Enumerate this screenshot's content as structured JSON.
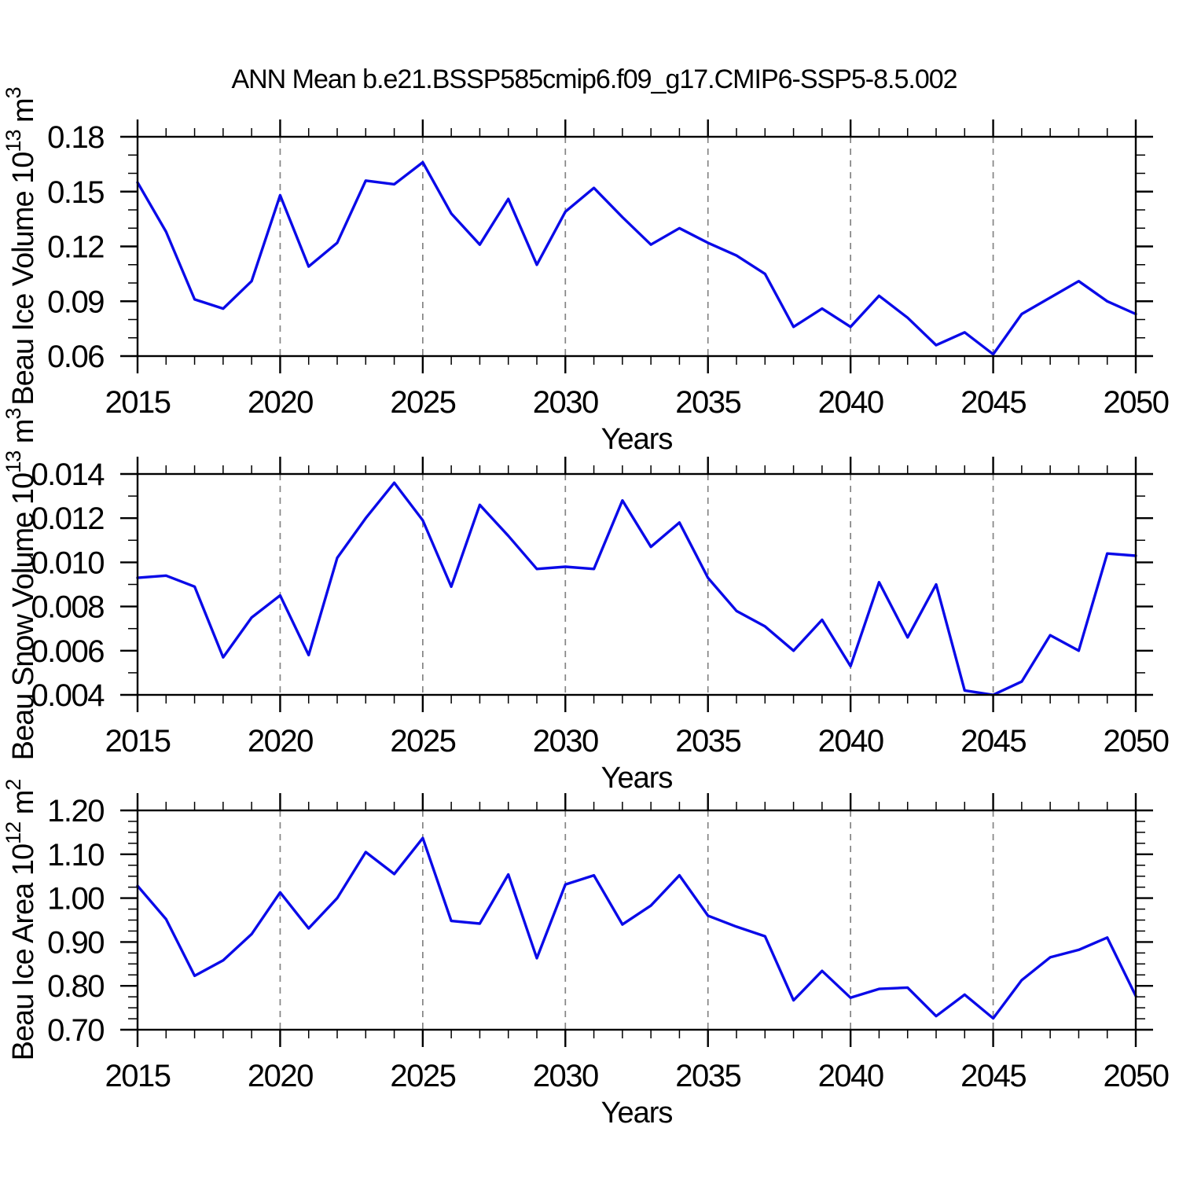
{
  "title": "ANN Mean b.e21.BSSP585cmip6.f09_g17.CMIP6-SSP5-8.5.002",
  "colors": {
    "line": "#0A0AE8",
    "grid": "#848484",
    "frame": "#000000",
    "background": "#ffffff",
    "text": "#000000"
  },
  "chart_data": [
    {
      "id": "ice-volume",
      "type": "line",
      "title": "",
      "ylabel": "Beau Ice Volume 10¹³ m³",
      "ylabel_parts": [
        {
          "t": "Beau Ice Volume 10",
          "sup": false
        },
        {
          "t": "13",
          "sup": true
        },
        {
          "t": " m",
          "sup": false
        },
        {
          "t": "3",
          "sup": true
        }
      ],
      "xlabel": "Years",
      "legend": "none",
      "grid": "vertical-dashed",
      "x": [
        2015,
        2016,
        2017,
        2018,
        2019,
        2020,
        2021,
        2022,
        2023,
        2024,
        2025,
        2026,
        2027,
        2028,
        2029,
        2030,
        2031,
        2032,
        2033,
        2034,
        2035,
        2036,
        2037,
        2038,
        2039,
        2040,
        2041,
        2042,
        2043,
        2044,
        2045,
        2046,
        2047,
        2048,
        2049,
        2050
      ],
      "values": [
        0.155,
        0.128,
        0.091,
        0.086,
        0.101,
        0.148,
        0.109,
        0.122,
        0.156,
        0.154,
        0.166,
        0.138,
        0.121,
        0.146,
        0.11,
        0.139,
        0.152,
        0.136,
        0.121,
        0.13,
        0.122,
        0.115,
        0.105,
        0.076,
        0.086,
        0.076,
        0.093,
        0.081,
        0.066,
        0.073,
        0.061,
        0.083,
        0.092,
        0.101,
        0.09,
        0.083
      ],
      "xlim": [
        2015,
        2050
      ],
      "ylim": [
        0.06,
        0.18
      ],
      "xticks": [
        2015,
        2020,
        2025,
        2030,
        2035,
        2040,
        2045,
        2050
      ],
      "x_minor_step": 1,
      "yticks": [
        0.06,
        0.09,
        0.12,
        0.15,
        0.18
      ],
      "ytick_labels": [
        "0.06",
        "0.09",
        "0.12",
        "0.15",
        "0.18"
      ],
      "y_minor_step": 0.01,
      "grid_x": [
        2020,
        2025,
        2030,
        2035,
        2040,
        2045
      ]
    },
    {
      "id": "snow-volume",
      "type": "line",
      "title": "",
      "ylabel": "Beau Snow Volume 10¹³ m³",
      "ylabel_parts": [
        {
          "t": "Beau Snow Volume 10",
          "sup": false
        },
        {
          "t": "13",
          "sup": true
        },
        {
          "t": " m",
          "sup": false
        },
        {
          "t": "3",
          "sup": true
        }
      ],
      "xlabel": "Years",
      "legend": "none",
      "grid": "vertical-dashed",
      "x": [
        2015,
        2016,
        2017,
        2018,
        2019,
        2020,
        2021,
        2022,
        2023,
        2024,
        2025,
        2026,
        2027,
        2028,
        2029,
        2030,
        2031,
        2032,
        2033,
        2034,
        2035,
        2036,
        2037,
        2038,
        2039,
        2040,
        2041,
        2042,
        2043,
        2044,
        2045,
        2046,
        2047,
        2048,
        2049,
        2050
      ],
      "values": [
        0.0093,
        0.0094,
        0.0089,
        0.0057,
        0.0075,
        0.0085,
        0.0058,
        0.0102,
        0.012,
        0.0136,
        0.0119,
        0.0089,
        0.0126,
        0.0112,
        0.0097,
        0.0098,
        0.0097,
        0.0128,
        0.0107,
        0.0118,
        0.0093,
        0.0078,
        0.0071,
        0.006,
        0.0074,
        0.0053,
        0.0091,
        0.0066,
        0.009,
        0.0042,
        0.004,
        0.0046,
        0.0067,
        0.006,
        0.0104,
        0.0103
      ],
      "xlim": [
        2015,
        2050
      ],
      "ylim": [
        0.004,
        0.014
      ],
      "xticks": [
        2015,
        2020,
        2025,
        2030,
        2035,
        2040,
        2045,
        2050
      ],
      "x_minor_step": 1,
      "yticks": [
        0.004,
        0.006,
        0.008,
        0.01,
        0.012,
        0.014
      ],
      "ytick_labels": [
        "0.004",
        "0.006",
        "0.008",
        "0.010",
        "0.012",
        "0.014"
      ],
      "y_minor_step": 0.001,
      "grid_x": [
        2020,
        2025,
        2030,
        2035,
        2040,
        2045
      ]
    },
    {
      "id": "ice-area",
      "type": "line",
      "title": "",
      "ylabel": "Beau Ice Area 10¹² m²",
      "ylabel_parts": [
        {
          "t": "Beau Ice Area 10",
          "sup": false
        },
        {
          "t": "12",
          "sup": true
        },
        {
          "t": " m",
          "sup": false
        },
        {
          "t": "2",
          "sup": true
        }
      ],
      "xlabel": "Years",
      "legend": "none",
      "grid": "vertical-dashed",
      "x": [
        2015,
        2016,
        2017,
        2018,
        2019,
        2020,
        2021,
        2022,
        2023,
        2024,
        2025,
        2026,
        2027,
        2028,
        2029,
        2030,
        2031,
        2032,
        2033,
        2034,
        2035,
        2036,
        2037,
        2038,
        2039,
        2040,
        2041,
        2042,
        2043,
        2044,
        2045,
        2046,
        2047,
        2048,
        2049,
        2050
      ],
      "values": [
        1.028,
        0.952,
        0.823,
        0.858,
        0.918,
        1.013,
        0.931,
        1.0,
        1.105,
        1.055,
        1.137,
        0.948,
        0.942,
        1.054,
        0.863,
        1.031,
        1.052,
        0.94,
        0.983,
        1.052,
        0.96,
        0.935,
        0.913,
        0.767,
        0.834,
        0.773,
        0.793,
        0.796,
        0.731,
        0.78,
        0.726,
        0.813,
        0.865,
        0.882,
        0.91,
        0.777
      ],
      "xlim": [
        2015,
        2050
      ],
      "ylim": [
        0.7,
        1.2
      ],
      "xticks": [
        2015,
        2020,
        2025,
        2030,
        2035,
        2040,
        2045,
        2050
      ],
      "x_minor_step": 1,
      "yticks": [
        0.7,
        0.8,
        0.9,
        1.0,
        1.1,
        1.2
      ],
      "ytick_labels": [
        "0.70",
        "0.80",
        "0.90",
        "1.00",
        "1.10",
        "1.20"
      ],
      "y_minor_step": 0.025,
      "grid_x": [
        2020,
        2025,
        2030,
        2035,
        2040,
        2045
      ]
    }
  ]
}
